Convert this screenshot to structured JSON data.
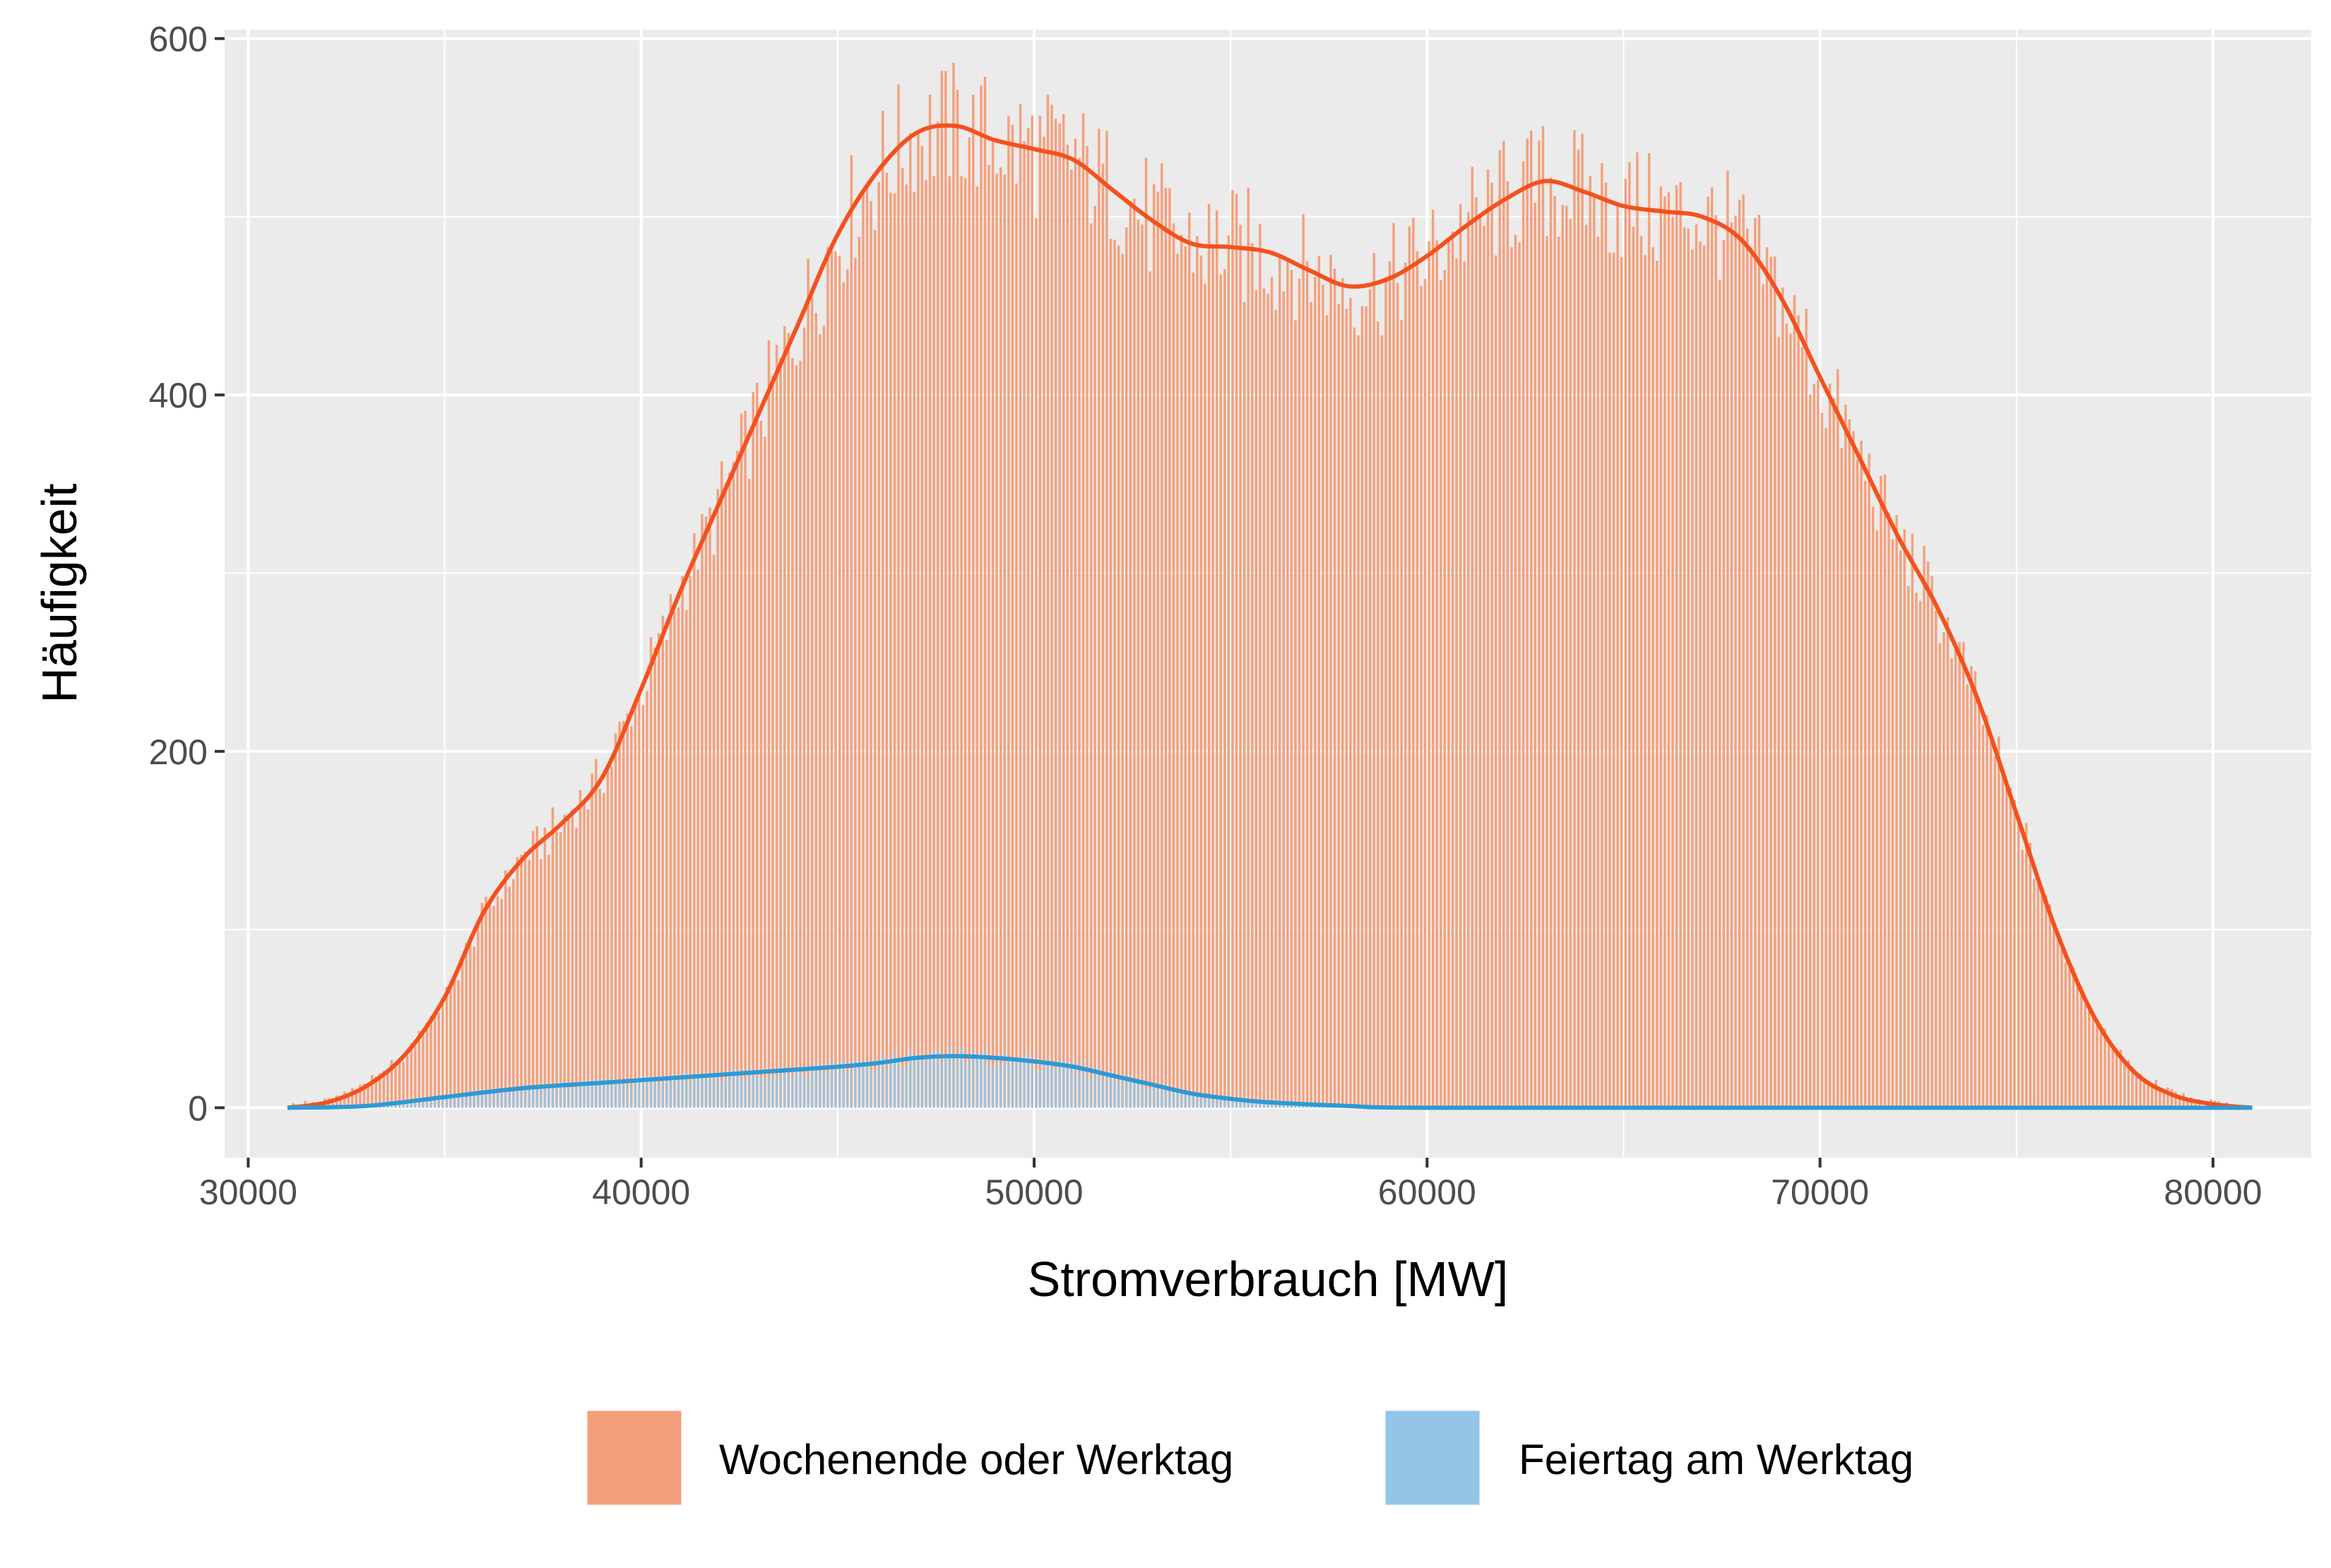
{
  "chart_data": {
    "type": "histogram",
    "title": "",
    "xlabel": "Stromverbrauch [MW]",
    "ylabel": "Häufigkeit",
    "xlim": [
      29400,
      82500
    ],
    "ylim": [
      -28,
      605
    ],
    "x_ticks": [
      30000,
      40000,
      50000,
      60000,
      70000,
      80000
    ],
    "y_ticks": [
      0,
      200,
      400,
      600
    ],
    "y_minor": [
      100,
      300,
      500
    ],
    "grid": true,
    "panel_background": "#ebebeb",
    "legend_position": "bottom",
    "bin_width": 100,
    "series": [
      {
        "name": "Wochenende oder Werktag",
        "fill": "#f4a07d",
        "line": "#f4511e",
        "density_curve": [
          [
            31000,
            0
          ],
          [
            32000,
            3
          ],
          [
            33000,
            12
          ],
          [
            34000,
            30
          ],
          [
            35000,
            62
          ],
          [
            36000,
            110
          ],
          [
            37000,
            140
          ],
          [
            38000,
            160
          ],
          [
            39000,
            185
          ],
          [
            40000,
            235
          ],
          [
            41000,
            290
          ],
          [
            42000,
            340
          ],
          [
            43000,
            390
          ],
          [
            44000,
            440
          ],
          [
            45000,
            490
          ],
          [
            46000,
            525
          ],
          [
            47000,
            547
          ],
          [
            48000,
            551
          ],
          [
            49000,
            543
          ],
          [
            50000,
            538
          ],
          [
            51000,
            532
          ],
          [
            52000,
            515
          ],
          [
            53000,
            498
          ],
          [
            54000,
            485
          ],
          [
            55000,
            483
          ],
          [
            56000,
            480
          ],
          [
            57000,
            470
          ],
          [
            58000,
            461
          ],
          [
            59000,
            465
          ],
          [
            60000,
            478
          ],
          [
            61000,
            495
          ],
          [
            62000,
            510
          ],
          [
            63000,
            520
          ],
          [
            64000,
            514
          ],
          [
            65000,
            506
          ],
          [
            66000,
            503
          ],
          [
            67000,
            500
          ],
          [
            68000,
            487
          ],
          [
            69000,
            455
          ],
          [
            70000,
            410
          ],
          [
            71000,
            365
          ],
          [
            72000,
            320
          ],
          [
            73000,
            280
          ],
          [
            74000,
            230
          ],
          [
            75000,
            165
          ],
          [
            76000,
            100
          ],
          [
            77000,
            50
          ],
          [
            78000,
            20
          ],
          [
            79000,
            7
          ],
          [
            80000,
            2
          ],
          [
            81000,
            0
          ]
        ]
      },
      {
        "name": "Feiertag am Werktag",
        "fill": "#92c5e8",
        "line": "#2c9ad6",
        "density_curve": [
          [
            31000,
            0
          ],
          [
            33000,
            1
          ],
          [
            35000,
            6
          ],
          [
            37000,
            11
          ],
          [
            39000,
            14
          ],
          [
            41000,
            17
          ],
          [
            43000,
            20
          ],
          [
            45000,
            23
          ],
          [
            46000,
            25
          ],
          [
            47000,
            28
          ],
          [
            48000,
            29
          ],
          [
            49000,
            28
          ],
          [
            50000,
            26
          ],
          [
            51000,
            23
          ],
          [
            52000,
            18
          ],
          [
            53000,
            13
          ],
          [
            54000,
            8
          ],
          [
            55000,
            5
          ],
          [
            56000,
            3
          ],
          [
            58000,
            1
          ],
          [
            60000,
            0
          ],
          [
            70000,
            0
          ],
          [
            81000,
            0
          ]
        ]
      }
    ]
  }
}
